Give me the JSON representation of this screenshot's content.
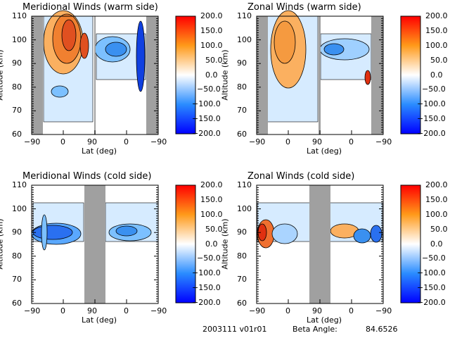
{
  "chart_data": [
    {
      "type": "heatmap",
      "title": "Meridional Winds (warm side)",
      "xlabel": "Lat (deg)",
      "ylabel": "Altitude (km)",
      "xticks": [
        "-90",
        "0",
        "90",
        "0",
        "-90"
      ],
      "yticks": [
        "60",
        "70",
        "80",
        "90",
        "100",
        "110"
      ],
      "ylim": [
        60,
        110
      ],
      "colorbar": {
        "ticks": [
          "200.0",
          "150.0",
          "100.0",
          "50.0",
          "0.0",
          "-50.0",
          "-100.0",
          "-150.0",
          "-200.0"
        ],
        "range": [
          -200,
          200
        ]
      }
    },
    {
      "type": "heatmap",
      "title": "Zonal Winds (warm side)",
      "xlabel": "Lat (deg)",
      "ylabel": "Altitude (km)",
      "xticks": [
        "-90",
        "0",
        "90",
        "0",
        "-90"
      ],
      "yticks": [
        "60",
        "70",
        "80",
        "90",
        "100",
        "110"
      ],
      "ylim": [
        60,
        110
      ],
      "colorbar": {
        "ticks": [
          "200.0",
          "150.0",
          "100.0",
          "50.0",
          "0.0",
          "-50.0",
          "-100.0",
          "-150.0",
          "-200.0"
        ],
        "range": [
          -200,
          200
        ]
      }
    },
    {
      "type": "heatmap",
      "title": "Meridional Winds (cold side)",
      "xlabel": "Lat (deg)",
      "ylabel": "Altitude (km)",
      "xticks": [
        "-90",
        "0",
        "90",
        "0",
        "-90"
      ],
      "yticks": [
        "60",
        "70",
        "80",
        "90",
        "100",
        "110"
      ],
      "ylim": [
        60,
        110
      ],
      "colorbar": {
        "ticks": [
          "200.0",
          "150.0",
          "100.0",
          "50.0",
          "0.0",
          "-50.0",
          "-100.0",
          "-150.0",
          "-200.0"
        ],
        "range": [
          -200,
          200
        ]
      }
    },
    {
      "type": "heatmap",
      "title": "Zonal Winds (cold side)",
      "xlabel": "Lat (deg)",
      "ylabel": "Altitude (km)",
      "xticks": [
        "-90",
        "0",
        "90",
        "0",
        "-90"
      ],
      "yticks": [
        "60",
        "70",
        "80",
        "90",
        "100",
        "110"
      ],
      "ylim": [
        60,
        110
      ],
      "colorbar": {
        "ticks": [
          "200.0",
          "150.0",
          "100.0",
          "50.0",
          "0.0",
          "-50.0",
          "-100.0",
          "-150.0",
          "-200.0"
        ],
        "range": [
          -200,
          200
        ]
      }
    }
  ],
  "footer": {
    "id": "2003111 v01r01",
    "beta_label": "Beta Angle:",
    "beta_value": "84.6526"
  },
  "colors": {
    "max": "#ff0000",
    "mid": "#ffffff",
    "min": "#0000ff",
    "gap": "#a0a0a0"
  }
}
